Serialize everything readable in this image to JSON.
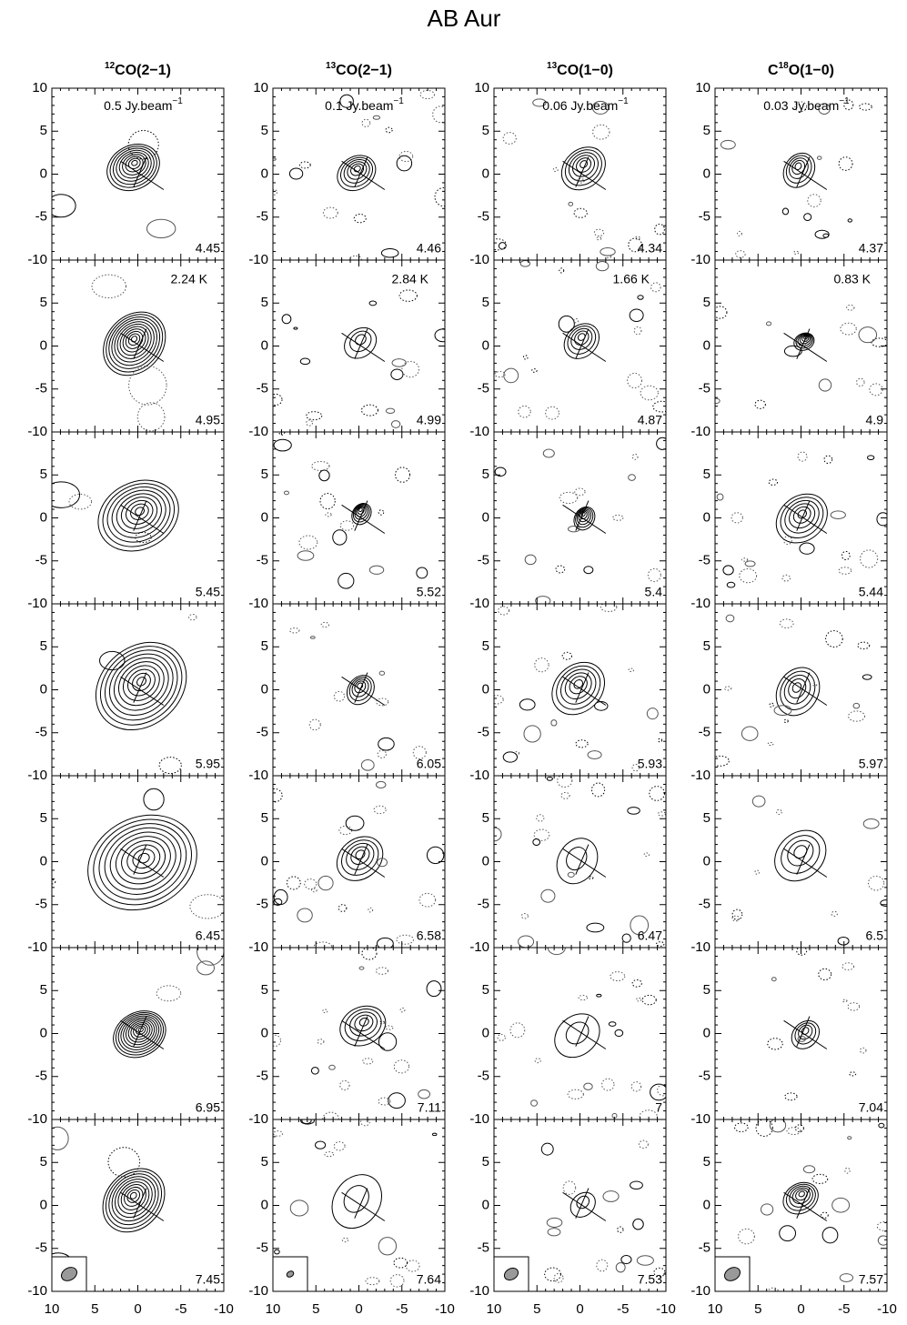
{
  "title": "AB Aur",
  "xlim": [
    10,
    -10
  ],
  "ylim": [
    -10,
    10
  ],
  "xticks": [
    10,
    5,
    0,
    -5,
    -10
  ],
  "yticks": [
    10,
    5,
    0,
    -5,
    -10
  ],
  "columns": [
    {
      "header": [
        {
          "t": "12",
          "sup": true
        },
        {
          "t": "CO(2−1)"
        }
      ],
      "flux": [
        {
          "t": "0.5 Jy.beam"
        },
        {
          "t": "−1",
          "sup": true
        }
      ],
      "k_label": "2.24 K",
      "velocities": [
        4.45,
        4.95,
        5.45,
        5.95,
        6.45,
        6.95,
        7.45
      ]
    },
    {
      "header": [
        {
          "t": "13",
          "sup": true
        },
        {
          "t": "CO(2−1)"
        }
      ],
      "flux": [
        {
          "t": "0.1 Jy.beam"
        },
        {
          "t": "−1",
          "sup": true
        }
      ],
      "k_label": "2.84 K",
      "velocities": [
        4.46,
        4.99,
        5.52,
        6.05,
        6.58,
        7.11,
        7.64
      ]
    },
    {
      "header": [
        {
          "t": "13",
          "sup": true
        },
        {
          "t": "CO(1−0)"
        }
      ],
      "flux": [
        {
          "t": "0.06 Jy.beam"
        },
        {
          "t": "−1",
          "sup": true
        }
      ],
      "k_label": "1.66 K",
      "velocities": [
        4.34,
        4.87,
        5.4,
        5.93,
        6.47,
        7,
        7.53
      ]
    },
    {
      "header": [
        {
          "t": "C"
        },
        {
          "t": "18",
          "sup": true
        },
        {
          "t": "O(1−0)"
        }
      ],
      "flux": [
        {
          "t": "0.03 Jy.beam"
        },
        {
          "t": "−1",
          "sup": true
        }
      ],
      "k_label": "0.83 K",
      "velocities": [
        4.37,
        4.9,
        5.44,
        5.97,
        6.5,
        7.04,
        7.57
      ]
    }
  ]
}
